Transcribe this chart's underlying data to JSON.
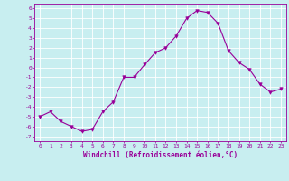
{
  "x": [
    0,
    1,
    2,
    3,
    4,
    5,
    6,
    7,
    8,
    9,
    10,
    11,
    12,
    13,
    14,
    15,
    16,
    17,
    18,
    19,
    20,
    21,
    22,
    23
  ],
  "y": [
    -5.0,
    -4.5,
    -5.5,
    -6.0,
    -6.5,
    -6.3,
    -4.5,
    -3.5,
    -1.0,
    -1.0,
    0.3,
    1.5,
    2.0,
    3.2,
    5.0,
    5.8,
    5.6,
    4.5,
    1.7,
    0.5,
    -0.2,
    -1.7,
    -2.5,
    -2.2
  ],
  "ylim": [
    -7.5,
    6.5
  ],
  "xlim": [
    -0.5,
    23.5
  ],
  "yticks": [
    -7,
    -6,
    -5,
    -4,
    -3,
    -2,
    -1,
    0,
    1,
    2,
    3,
    4,
    5,
    6
  ],
  "xticks": [
    0,
    1,
    2,
    3,
    4,
    5,
    6,
    7,
    8,
    9,
    10,
    11,
    12,
    13,
    14,
    15,
    16,
    17,
    18,
    19,
    20,
    21,
    22,
    23
  ],
  "line_color": "#990099",
  "marker": "v",
  "bg_color": "#c8eef0",
  "grid_color": "#ffffff",
  "xlabel": "Windchill (Refroidissement éolien,°C)",
  "xlabel_color": "#990099",
  "tick_color": "#990099",
  "label_fontsize": 5.5,
  "tick_fontsize": 4.5
}
